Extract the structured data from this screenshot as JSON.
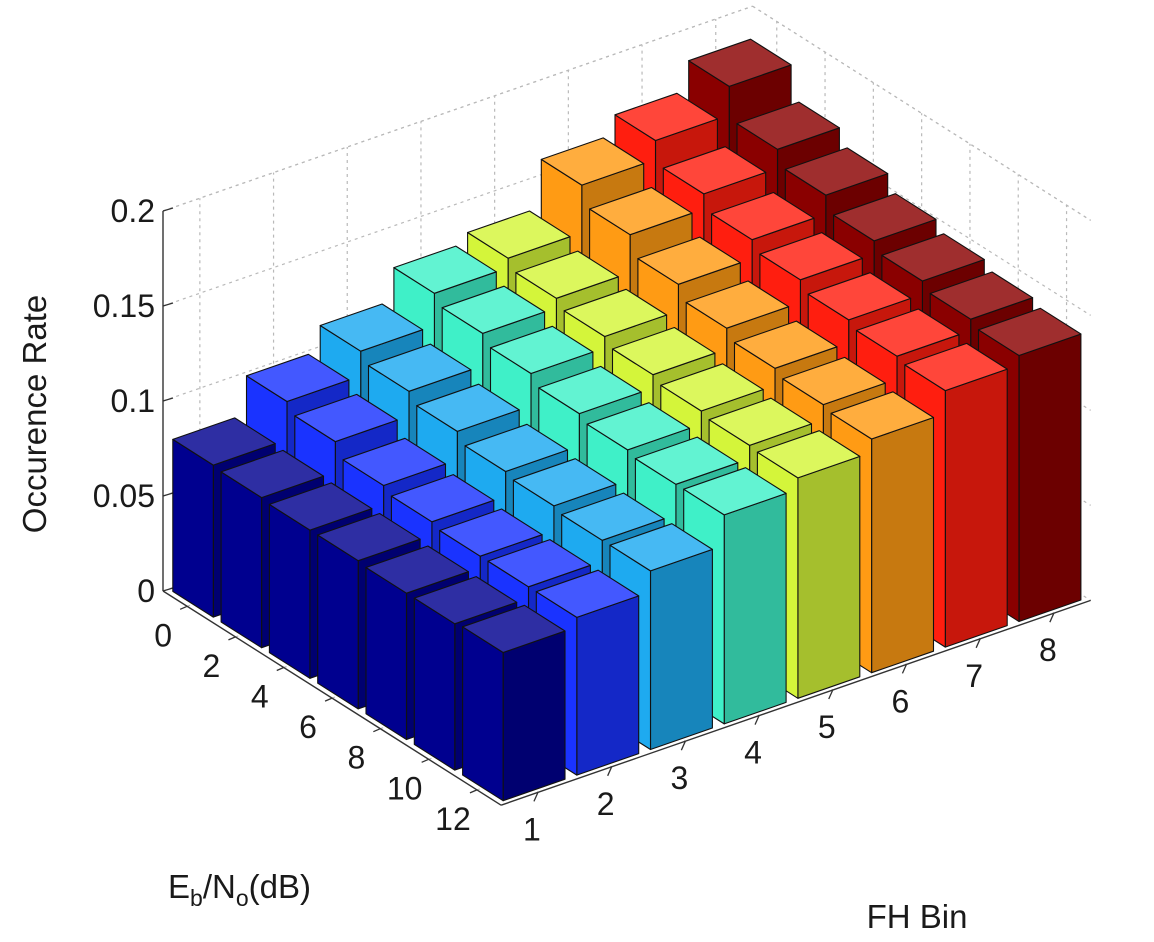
{
  "chart_data": {
    "type": "bar3d",
    "title": "",
    "zlabel": "Occurence Rate",
    "xlabel_main": "E",
    "xlabel_sub_b": "b",
    "xlabel_mid": "/N",
    "xlabel_sub_o": "o",
    "xlabel_tail": "(dB)",
    "ylabel": "FH Bin",
    "x_ticks": [
      "0",
      "2",
      "4",
      "6",
      "8",
      "10",
      "12"
    ],
    "y_ticks": [
      "1",
      "2",
      "3",
      "4",
      "5",
      "6",
      "7",
      "8"
    ],
    "z_ticks": [
      "0",
      "0.05",
      "0.1",
      "0.15",
      "0.2"
    ],
    "zlim": [
      0,
      0.2
    ],
    "grid": true,
    "x_values": [
      0,
      2,
      4,
      6,
      8,
      10,
      12
    ],
    "series": [
      {
        "fh_bin": 1,
        "color": "#00008f",
        "values": [
          0.08,
          0.079,
          0.078,
          0.078,
          0.077,
          0.077,
          0.078
        ]
      },
      {
        "fh_bin": 2,
        "color": "#1a33ff",
        "values": [
          0.1,
          0.095,
          0.088,
          0.085,
          0.083,
          0.083,
          0.083
        ]
      },
      {
        "fh_bin": 3,
        "color": "#1eaaf0",
        "values": [
          0.113,
          0.108,
          0.103,
          0.098,
          0.096,
          0.094,
          0.094
        ]
      },
      {
        "fh_bin": 4,
        "color": "#3ff0c8",
        "values": [
          0.13,
          0.125,
          0.12,
          0.115,
          0.112,
          0.11,
          0.11
        ]
      },
      {
        "fh_bin": 5,
        "color": "#d4f53a",
        "values": [
          0.135,
          0.13,
          0.126,
          0.122,
          0.119,
          0.117,
          0.116
        ]
      },
      {
        "fh_bin": 6,
        "color": "#ff9b14",
        "values": [
          0.16,
          0.15,
          0.14,
          0.133,
          0.128,
          0.125,
          0.123
        ]
      },
      {
        "fh_bin": 7,
        "color": "#ff1e0f",
        "values": [
          0.17,
          0.158,
          0.15,
          0.145,
          0.14,
          0.137,
          0.135
        ]
      },
      {
        "fh_bin": 8,
        "color": "#8a0000",
        "values": [
          0.185,
          0.168,
          0.16,
          0.152,
          0.147,
          0.143,
          0.14
        ]
      }
    ]
  }
}
